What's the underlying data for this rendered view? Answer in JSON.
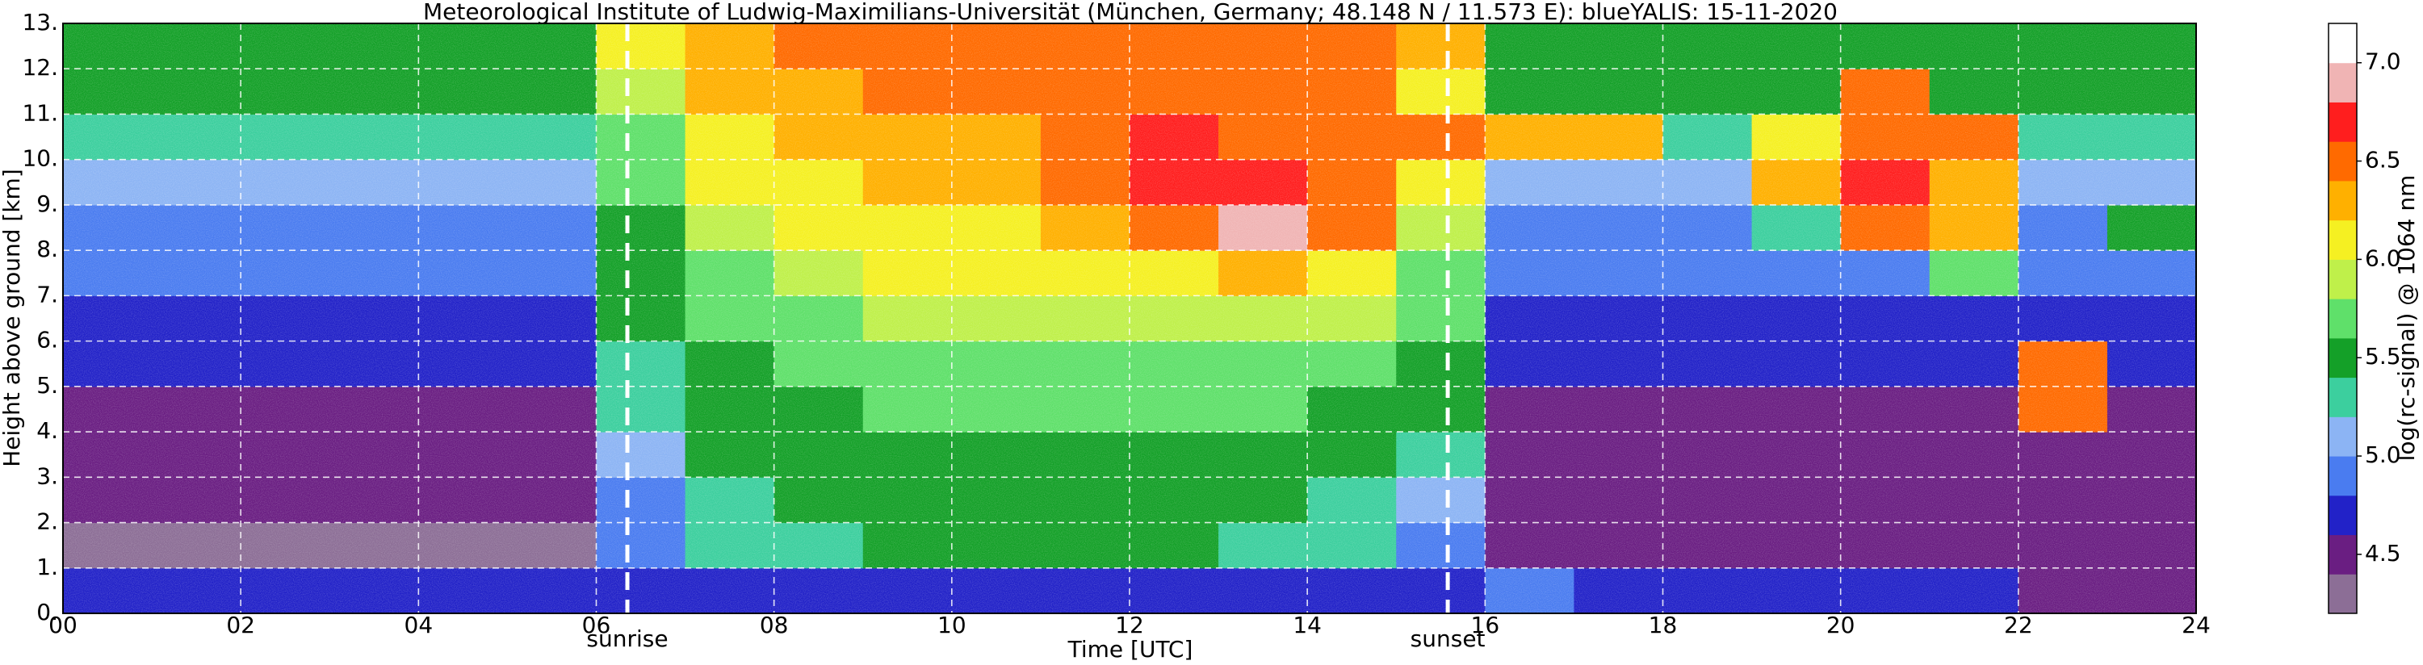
{
  "chart_data": {
    "type": "heatmap",
    "title": "Meteorological Institute of Ludwig-Maximilians-Universität (München, Germany; 48.148 N / 11.573 E):    blueYALIS: 15-11-2020",
    "x_label": "Time [UTC]",
    "y_label": "Height above ground [km]",
    "colorbar_label": "log(rc-signal) @ 1064 nm",
    "xlim": [
      0,
      24
    ],
    "ylim": [
      0,
      13
    ],
    "xbins": [
      0,
      1,
      2,
      3,
      4,
      5,
      6,
      7,
      8,
      9,
      10,
      11,
      12,
      13,
      14,
      15,
      16,
      17,
      18,
      19,
      20,
      21,
      22,
      23,
      24
    ],
    "ybins": [
      0,
      1,
      2,
      3,
      4,
      5,
      6,
      7,
      8,
      9,
      10,
      11,
      12,
      13
    ],
    "xticks": [
      {
        "value": 0,
        "label": "00"
      },
      {
        "value": 2,
        "label": "02"
      },
      {
        "value": 4,
        "label": "04"
      },
      {
        "value": 6,
        "label": "06"
      },
      {
        "value": 8,
        "label": "08"
      },
      10,
      12,
      14,
      16,
      18,
      20,
      22,
      24
    ],
    "yticks": [
      {
        "value": 0,
        "label": "0."
      },
      {
        "value": 1,
        "label": "1."
      },
      {
        "value": 2,
        "label": "2."
      },
      {
        "value": 3,
        "label": "3."
      },
      {
        "value": 4,
        "label": "4."
      },
      {
        "value": 5,
        "label": "5."
      },
      {
        "value": 6,
        "label": "6."
      },
      {
        "value": 7,
        "label": "7."
      },
      {
        "value": 8,
        "label": "8."
      },
      {
        "value": 9,
        "label": "9."
      },
      {
        "value": 10,
        "label": "10."
      },
      {
        "value": 11,
        "label": "11."
      },
      {
        "value": 12,
        "label": "12."
      },
      {
        "value": 13,
        "label": "13."
      }
    ],
    "grid": true,
    "clim": [
      4.2,
      7.2
    ],
    "cticks": [
      4.5,
      {
        "value": 5,
        "label": "5.0"
      },
      5.5,
      {
        "value": 6,
        "label": "6.0"
      },
      6.5,
      {
        "value": 7,
        "label": "7.0"
      }
    ],
    "colorscale": [
      "#8c6e96",
      "#6a1e82",
      "#2222c8",
      "#4a7cf0",
      "#8cb4f4",
      "#3ccf9e",
      "#14a028",
      "#5fe06a",
      "#bff04a",
      "#f5f022",
      "#ffb000",
      "#ff6a00",
      "#ff1e1e",
      "#f0b4b4",
      "#ffffff"
    ],
    "events": [
      {
        "x": 6.35,
        "text": "sunrise"
      },
      {
        "x": 15.58,
        "text": "sunset"
      }
    ],
    "values": [
      [
        4.7,
        4.8,
        4.8,
        4.8,
        4.8,
        4.8,
        4.8,
        4.8,
        4.8,
        4.8,
        4.8,
        4.8,
        4.8,
        4.8,
        4.8,
        4.8,
        4.9,
        4.7,
        4.7,
        4.7,
        4.7,
        4.7,
        4.6,
        4.4
      ],
      [
        4.35,
        4.35,
        4.35,
        4.35,
        4.35,
        4.35,
        4.9,
        5.2,
        5.3,
        5.4,
        5.4,
        5.4,
        5.4,
        5.3,
        5.2,
        5.0,
        4.4,
        4.4,
        4.5,
        4.5,
        4.5,
        4.5,
        4.6,
        4.6
      ],
      [
        4.4,
        4.4,
        4.4,
        4.4,
        4.4,
        4.4,
        5.0,
        5.3,
        5.4,
        5.5,
        5.5,
        5.5,
        5.5,
        5.4,
        5.3,
        5.1,
        4.4,
        4.4,
        4.4,
        4.4,
        4.4,
        4.4,
        4.5,
        4.4
      ],
      [
        4.5,
        4.5,
        4.5,
        4.5,
        4.5,
        4.5,
        5.1,
        5.4,
        5.5,
        5.6,
        5.6,
        5.6,
        5.6,
        5.5,
        5.4,
        5.2,
        4.5,
        4.5,
        4.5,
        4.5,
        4.5,
        4.5,
        4.5,
        4.5
      ],
      [
        4.6,
        4.6,
        4.6,
        4.6,
        4.6,
        4.6,
        5.2,
        5.5,
        5.6,
        5.7,
        5.7,
        5.7,
        5.7,
        5.7,
        5.6,
        5.4,
        4.6,
        4.6,
        4.6,
        4.6,
        4.6,
        4.6,
        6.4,
        4.6
      ],
      [
        4.7,
        4.7,
        4.7,
        4.7,
        4.7,
        4.7,
        5.3,
        5.6,
        5.7,
        5.8,
        5.8,
        5.8,
        5.8,
        5.8,
        5.7,
        5.5,
        4.7,
        4.7,
        4.7,
        4.7,
        4.7,
        4.7,
        6.6,
        4.7
      ],
      [
        4.8,
        4.8,
        4.8,
        4.8,
        4.8,
        4.8,
        5.4,
        5.7,
        5.8,
        5.9,
        5.9,
        5.9,
        5.9,
        5.9,
        5.9,
        5.7,
        4.8,
        4.8,
        4.8,
        4.8,
        4.8,
        4.8,
        4.8,
        4.8
      ],
      [
        4.9,
        4.9,
        4.9,
        4.9,
        4.9,
        4.9,
        5.5,
        5.8,
        5.9,
        6.0,
        6.0,
        6.0,
        6.1,
        6.2,
        6.1,
        5.8,
        4.9,
        4.9,
        4.9,
        4.9,
        5.0,
        5.8,
        4.9,
        4.9
      ],
      [
        5.0,
        5.0,
        5.0,
        5.0,
        5.0,
        5.0,
        5.6,
        5.9,
        6.0,
        6.1,
        6.1,
        6.2,
        6.5,
        6.9,
        6.5,
        5.9,
        5.0,
        5.0,
        5.0,
        5.2,
        6.5,
        6.2,
        5.0,
        5.5
      ],
      [
        5.1,
        5.1,
        5.1,
        5.1,
        5.1,
        5.1,
        5.7,
        6.0,
        6.1,
        6.2,
        6.2,
        6.4,
        6.8,
        6.8,
        6.4,
        6.0,
        5.1,
        5.1,
        5.1,
        6.2,
        6.7,
        6.3,
        5.1,
        5.1
      ],
      [
        5.3,
        5.3,
        5.3,
        5.3,
        5.3,
        5.3,
        5.8,
        6.1,
        6.2,
        6.3,
        6.3,
        6.6,
        6.7,
        6.5,
        6.4,
        6.6,
        6.3,
        6.3,
        5.3,
        6.0,
        6.6,
        6.4,
        5.3,
        5.3
      ],
      [
        5.4,
        5.4,
        5.4,
        5.4,
        5.6,
        5.4,
        5.9,
        6.2,
        6.3,
        6.4,
        6.4,
        6.5,
        6.5,
        6.5,
        6.4,
        6.1,
        5.4,
        5.4,
        5.4,
        5.4,
        6.4,
        5.4,
        5.4,
        5.4
      ],
      [
        5.5,
        5.5,
        5.5,
        5.5,
        5.5,
        5.5,
        6.0,
        6.3,
        6.4,
        6.5,
        6.5,
        6.5,
        6.5,
        6.5,
        6.5,
        6.2,
        5.5,
        5.5,
        5.5,
        5.5,
        5.5,
        5.5,
        5.5,
        5.5
      ]
    ]
  }
}
